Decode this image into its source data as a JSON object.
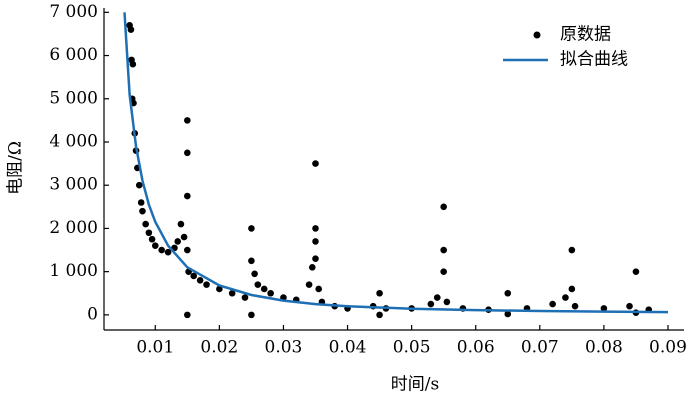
{
  "chart_data": {
    "type": "scatter",
    "xlabel": "时间/s",
    "ylabel": "电阻/Ω",
    "xlim": [
      0.002,
      0.0925
    ],
    "xticks": [
      0.01,
      0.02,
      0.03,
      0.04,
      0.05,
      0.06,
      0.07,
      0.08,
      0.09
    ],
    "ylim": [
      -350,
      7100
    ],
    "yticks": [
      0,
      {
        "value": 1000,
        "label": "1 000"
      },
      {
        "value": 2000,
        "label": "2 000"
      },
      {
        "value": 3000,
        "label": "3 000"
      },
      {
        "value": 4000,
        "label": "4 000"
      },
      {
        "value": 5000,
        "label": "5 000"
      },
      {
        "value": 6000,
        "label": "6 000"
      },
      {
        "value": 7000,
        "label": "7 000"
      }
    ],
    "legend": "upper right",
    "series": [
      {
        "name": "原数据",
        "color": "#000000",
        "kind": "markers",
        "x": [
          0.006,
          0.0062,
          0.0063,
          0.0064,
          0.0065,
          0.0066,
          0.0068,
          0.007,
          0.0072,
          0.0075,
          0.0078,
          0.008,
          0.0085,
          0.009,
          0.0095,
          0.01,
          0.011,
          0.012,
          0.013,
          0.0135,
          0.014,
          0.0145,
          0.015,
          0.015,
          0.015,
          0.015,
          0.015,
          0.0152,
          0.016,
          0.017,
          0.018,
          0.02,
          0.022,
          0.024,
          0.025,
          0.025,
          0.025,
          0.0255,
          0.026,
          0.027,
          0.028,
          0.03,
          0.032,
          0.034,
          0.0345,
          0.035,
          0.035,
          0.035,
          0.035,
          0.0355,
          0.036,
          0.038,
          0.04,
          0.044,
          0.045,
          0.045,
          0.046,
          0.05,
          0.053,
          0.054,
          0.055,
          0.055,
          0.055,
          0.0555,
          0.058,
          0.062,
          0.065,
          0.065,
          0.068,
          0.072,
          0.074,
          0.075,
          0.075,
          0.0755,
          0.08,
          0.084,
          0.085,
          0.085,
          0.087
        ],
        "values": [
          6700,
          6600,
          5900,
          5000,
          5800,
          4900,
          4200,
          3800,
          3400,
          3000,
          2600,
          2400,
          2100,
          1900,
          1750,
          1600,
          1500,
          1450,
          1550,
          1700,
          2100,
          1800,
          4500,
          3750,
          2750,
          1500,
          0,
          1000,
          900,
          800,
          700,
          600,
          500,
          400,
          2000,
          1250,
          0,
          950,
          700,
          600,
          500,
          400,
          350,
          700,
          1100,
          3500,
          2000,
          1700,
          1300,
          600,
          300,
          200,
          150,
          200,
          500,
          0,
          150,
          150,
          250,
          400,
          2500,
          1500,
          1000,
          300,
          150,
          120,
          500,
          20,
          150,
          250,
          400,
          1500,
          600,
          200,
          150,
          200,
          1000,
          50,
          120
        ]
      },
      {
        "name": "拟合曲线",
        "color": "#1f6fb5",
        "kind": "line",
        "x": [
          0.0052,
          0.006,
          0.007,
          0.008,
          0.009,
          0.01,
          0.012,
          0.015,
          0.02,
          0.025,
          0.03,
          0.035,
          0.04,
          0.05,
          0.06,
          0.07,
          0.08,
          0.09
        ],
        "values": [
          7000,
          5100,
          3900,
          3100,
          2550,
          2150,
          1600,
          1100,
          680,
          460,
          330,
          250,
          200,
          140,
          110,
          90,
          75,
          65
        ]
      }
    ]
  }
}
